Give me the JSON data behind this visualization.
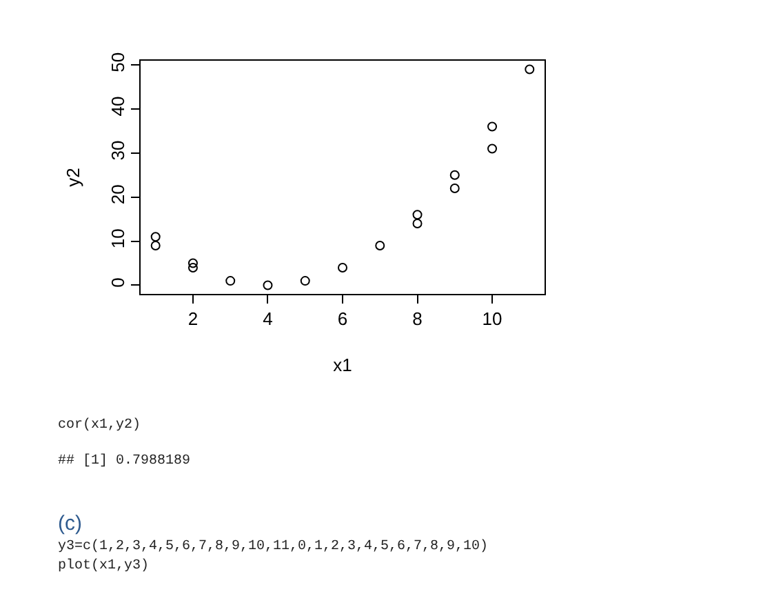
{
  "chart_data": {
    "type": "scatter",
    "xlabel": "x1",
    "ylabel": "y2",
    "x": [
      1,
      1,
      2,
      2,
      3,
      4,
      5,
      6,
      7,
      8,
      8,
      9,
      9,
      10,
      10,
      11
    ],
    "values": [
      9,
      11,
      4,
      5,
      1,
      0,
      1,
      4,
      9,
      14,
      16,
      22,
      25,
      31,
      36,
      49
    ],
    "color": "#000000",
    "marker": "circle",
    "xlim": [
      0.6,
      11.4
    ],
    "xticks": [
      2,
      4,
      6,
      8,
      10
    ],
    "ylim": [
      -1.96,
      50.96
    ],
    "yticks": [
      0,
      10,
      20,
      30,
      40,
      50
    ],
    "annotations": [
      "cor(x1,y2)",
      "## [1] 0.7988189",
      "(c)",
      "y3=c(1,2,3,4,5,6,7,8,9,10,11,0,1,2,3,4,5,6,7,8,9,10)",
      "plot(x1,y3)"
    ]
  }
}
